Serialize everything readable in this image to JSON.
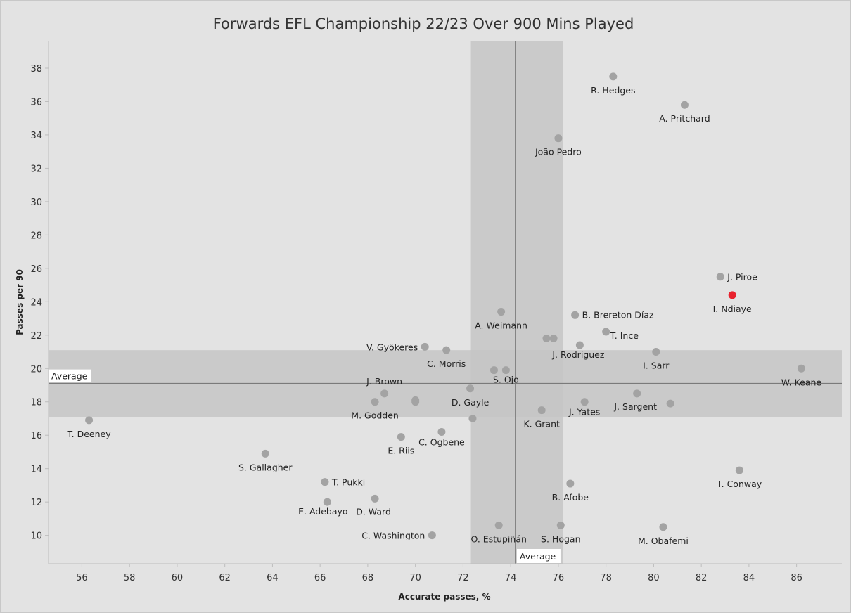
{
  "chart_data": {
    "type": "scatter",
    "title": "Forwards EFL Championship 22/23 Over 900 Mins Played",
    "xlabel": "Accurate passes, %",
    "ylabel": "Passes per 90",
    "xlim": [
      54.6,
      87.9
    ],
    "ylim": [
      8.3,
      39.6
    ],
    "xticks": [
      "56",
      "58",
      "60",
      "62",
      "64",
      "66",
      "68",
      "70",
      "72",
      "74",
      "76",
      "78",
      "80",
      "82",
      "84",
      "86"
    ],
    "yticks": [
      "10",
      "12",
      "14",
      "16",
      "18",
      "20",
      "22",
      "24",
      "26",
      "28",
      "30",
      "32",
      "34",
      "36",
      "38"
    ],
    "grid": false,
    "colors": {
      "background": "#e3e3e3",
      "point": "#a3a3a3",
      "highlight": "#e8232f",
      "band": "#c6c6c6",
      "avg_line": "#7a7a7a"
    },
    "reference": {
      "x_average": 74.2,
      "x_band": [
        72.3,
        76.2
      ],
      "y_average": 19.1,
      "y_band": [
        17.1,
        21.1
      ],
      "x_average_label": "Average",
      "y_average_label": "Average"
    },
    "points": [
      {
        "x": 78.3,
        "y": 37.5,
        "label": "R. Hedges"
      },
      {
        "x": 81.3,
        "y": 35.8,
        "label": "A. Pritchard"
      },
      {
        "x": 76.0,
        "y": 33.8,
        "label": "João Pedro"
      },
      {
        "x": 82.8,
        "y": 25.5,
        "label": "J. Piroe"
      },
      {
        "x": 83.3,
        "y": 24.4,
        "label": "I. Ndiaye",
        "highlight": true
      },
      {
        "x": 73.6,
        "y": 23.4,
        "label": "A. Weimann"
      },
      {
        "x": 76.7,
        "y": 23.2,
        "label": "B. Brereton Díaz"
      },
      {
        "x": 78.0,
        "y": 22.2,
        "label": "T. Ince"
      },
      {
        "x": 75.5,
        "y": 21.8,
        "label": ""
      },
      {
        "x": 75.8,
        "y": 21.8,
        "label": ""
      },
      {
        "x": 76.9,
        "y": 21.4,
        "label": "J. Rodriguez"
      },
      {
        "x": 70.4,
        "y": 21.3,
        "label": "V. Gyökeres"
      },
      {
        "x": 71.3,
        "y": 21.1,
        "label": "C. Morris"
      },
      {
        "x": 80.1,
        "y": 21.0,
        "label": "I. Sarr"
      },
      {
        "x": 73.3,
        "y": 19.9,
        "label": ""
      },
      {
        "x": 73.8,
        "y": 19.9,
        "label": "S. Ojo"
      },
      {
        "x": 86.2,
        "y": 20.0,
        "label": "W. Keane"
      },
      {
        "x": 68.7,
        "y": 18.5,
        "label": "J. Brown"
      },
      {
        "x": 72.3,
        "y": 18.8,
        "label": "D. Gayle"
      },
      {
        "x": 68.3,
        "y": 18.0,
        "label": "M. Godden"
      },
      {
        "x": 70.0,
        "y": 18.1,
        "label": ""
      },
      {
        "x": 70.0,
        "y": 18.0,
        "label": ""
      },
      {
        "x": 79.3,
        "y": 18.5,
        "label": "J. Sargent"
      },
      {
        "x": 80.7,
        "y": 17.9,
        "label": ""
      },
      {
        "x": 77.1,
        "y": 18.0,
        "label": "J. Yates"
      },
      {
        "x": 75.3,
        "y": 17.5,
        "label": "K. Grant"
      },
      {
        "x": 72.4,
        "y": 17.0,
        "label": ""
      },
      {
        "x": 56.3,
        "y": 16.9,
        "label": "T. Deeney"
      },
      {
        "x": 69.4,
        "y": 15.9,
        "label": "E. Riis"
      },
      {
        "x": 71.1,
        "y": 16.2,
        "label": "C. Ogbene"
      },
      {
        "x": 63.7,
        "y": 14.9,
        "label": "S. Gallagher"
      },
      {
        "x": 83.6,
        "y": 13.9,
        "label": "T. Conway"
      },
      {
        "x": 66.2,
        "y": 13.2,
        "label": "T. Pukki"
      },
      {
        "x": 76.5,
        "y": 13.1,
        "label": "B. Afobe"
      },
      {
        "x": 68.3,
        "y": 12.2,
        "label": "D. Ward"
      },
      {
        "x": 66.3,
        "y": 12.0,
        "label": "E. Adebayo"
      },
      {
        "x": 73.5,
        "y": 10.6,
        "label": "O. Estupiñán"
      },
      {
        "x": 76.1,
        "y": 10.6,
        "label": "S. Hogan"
      },
      {
        "x": 80.4,
        "y": 10.5,
        "label": "M. Obafemi"
      },
      {
        "x": 70.7,
        "y": 10.0,
        "label": "C. Washington"
      }
    ]
  }
}
